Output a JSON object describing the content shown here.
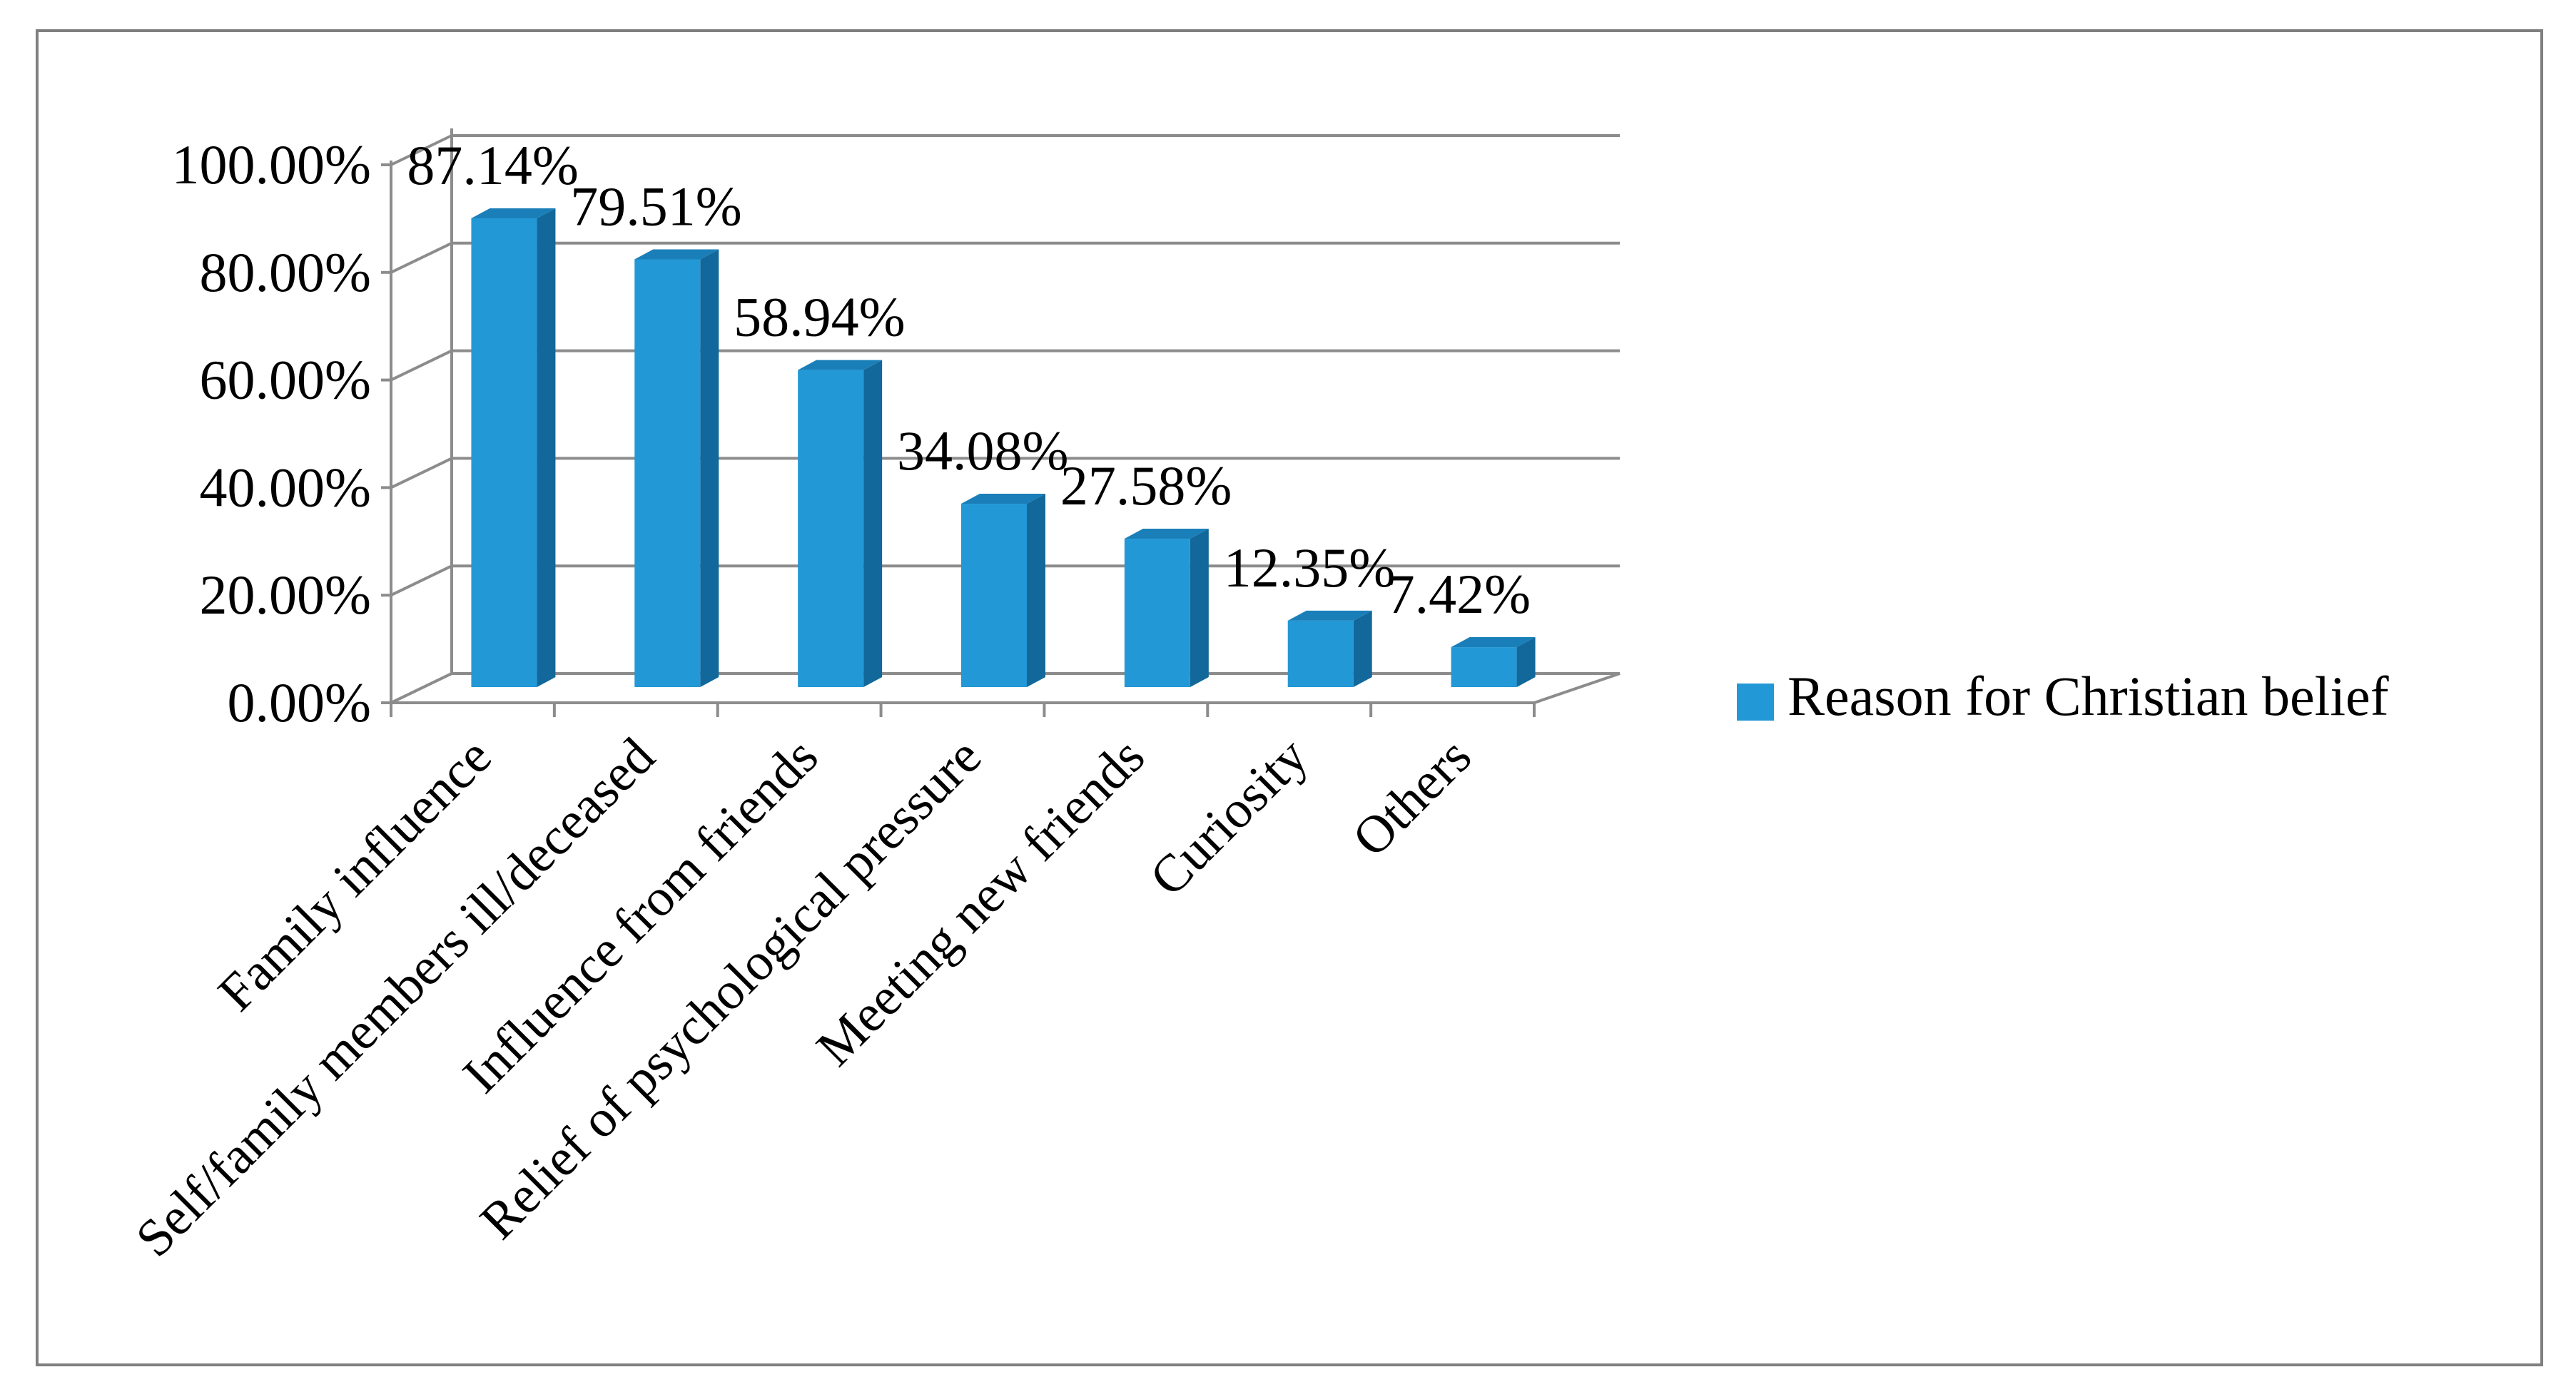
{
  "chart_data": {
    "type": "bar",
    "categories": [
      "Family influence",
      "Self/family members ill/deceased",
      "Influence from friends",
      "Relief of psychological pressure",
      "Meeting new friends",
      "Curiosity",
      "Others"
    ],
    "series": [
      {
        "name": "Reason for Christian belief",
        "values": [
          87.14,
          79.51,
          58.94,
          34.08,
          27.58,
          12.35,
          7.42
        ]
      }
    ],
    "data_labels": [
      "87.14%",
      "79.51%",
      "58.94%",
      "34.08%",
      "27.58%",
      "12.35%",
      "7.42%"
    ],
    "y_ticks": [
      "0.00%",
      "20.00%",
      "40.00%",
      "60.00%",
      "80.00%",
      "100.00%"
    ],
    "ylim": [
      0,
      100
    ],
    "grid": true,
    "style": "3d-column",
    "legend_position": "right",
    "colors": {
      "bar_front": "#2398d6",
      "bar_side": "#12689a",
      "bar_top": "#1a7fb8",
      "grid": "#8c8c8c",
      "frame": "#7f7f7f"
    }
  }
}
